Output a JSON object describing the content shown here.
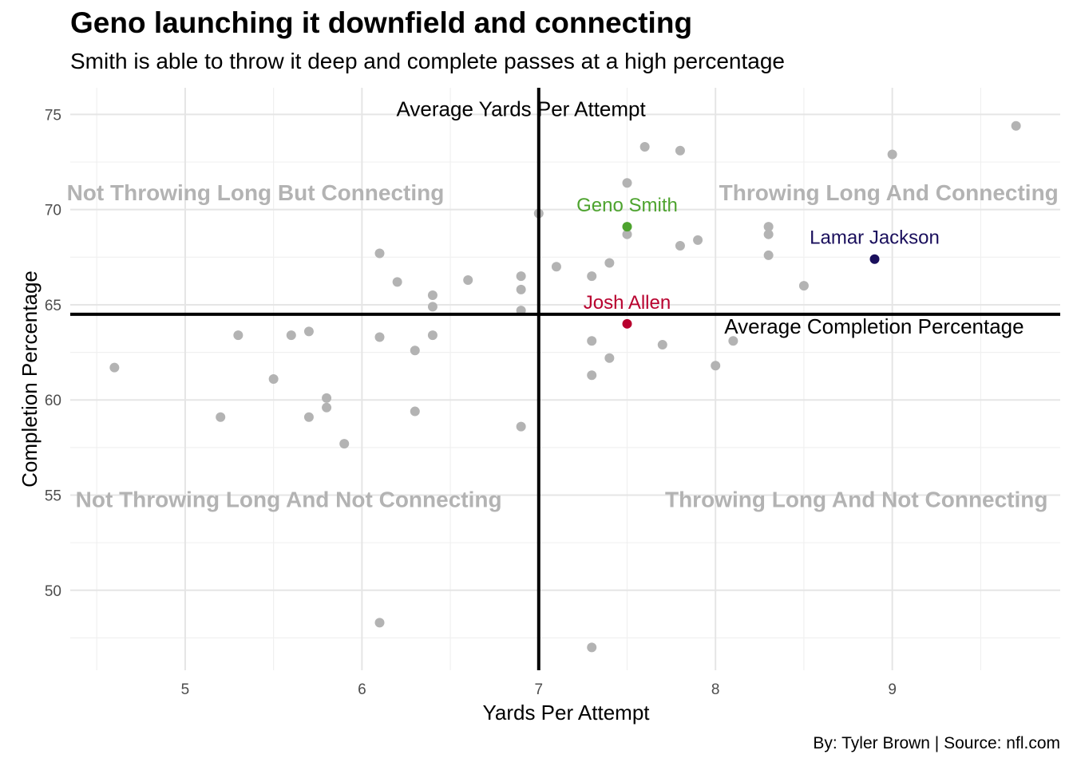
{
  "chart_data": {
    "type": "scatter",
    "title": "Geno launching it downfield and connecting",
    "subtitle": "Smith is able to throw it deep and complete passes at a high percentage",
    "caption": "By: Tyler Brown | Source: nfl.com",
    "xlabel": "Yards Per Attempt",
    "ylabel": "Completion Percentage",
    "xlim": [
      4.35,
      9.95
    ],
    "ylim": [
      45.8,
      76.4
    ],
    "xticks": [
      5,
      6,
      7,
      8,
      9
    ],
    "yticks": [
      50,
      55,
      60,
      65,
      70,
      75
    ],
    "grid": true,
    "reference_lines": {
      "x": 7.0,
      "y": 64.5,
      "x_label": "Average Yards Per Attempt",
      "y_label": "Average Completion Percentage"
    },
    "quadrant_labels": {
      "top_left": "Not Throwing Long But Connecting",
      "top_right": "Throwing Long And Connecting",
      "bottom_left": "Not Throwing Long And Not Connecting",
      "bottom_right": "Throwing Long And Not Connecting"
    },
    "default_color": "#b3b3b3",
    "points": [
      {
        "x": 9.7,
        "y": 74.4
      },
      {
        "x": 7.6,
        "y": 73.3
      },
      {
        "x": 7.8,
        "y": 73.1
      },
      {
        "x": 9.0,
        "y": 72.9
      },
      {
        "x": 7.5,
        "y": 71.4
      },
      {
        "x": 7.0,
        "y": 69.8
      },
      {
        "x": 8.3,
        "y": 69.1
      },
      {
        "x": 7.5,
        "y": 68.7
      },
      {
        "x": 8.3,
        "y": 68.7
      },
      {
        "x": 7.9,
        "y": 68.4
      },
      {
        "x": 7.8,
        "y": 68.1
      },
      {
        "x": 6.1,
        "y": 67.7
      },
      {
        "x": 8.3,
        "y": 67.6
      },
      {
        "x": 7.4,
        "y": 67.2
      },
      {
        "x": 7.1,
        "y": 67.0
      },
      {
        "x": 6.9,
        "y": 66.5
      },
      {
        "x": 7.3,
        "y": 66.5
      },
      {
        "x": 6.6,
        "y": 66.3
      },
      {
        "x": 6.2,
        "y": 66.2
      },
      {
        "x": 8.5,
        "y": 66.0
      },
      {
        "x": 6.9,
        "y": 65.8
      },
      {
        "x": 6.4,
        "y": 65.5
      },
      {
        "x": 6.4,
        "y": 64.9
      },
      {
        "x": 6.9,
        "y": 64.7
      },
      {
        "x": 5.3,
        "y": 63.4
      },
      {
        "x": 5.6,
        "y": 63.4
      },
      {
        "x": 5.7,
        "y": 63.6
      },
      {
        "x": 6.1,
        "y": 63.3
      },
      {
        "x": 6.4,
        "y": 63.4
      },
      {
        "x": 7.3,
        "y": 63.1
      },
      {
        "x": 8.1,
        "y": 63.1
      },
      {
        "x": 7.7,
        "y": 62.9
      },
      {
        "x": 6.3,
        "y": 62.6
      },
      {
        "x": 7.4,
        "y": 62.2
      },
      {
        "x": 8.0,
        "y": 61.8
      },
      {
        "x": 4.6,
        "y": 61.7
      },
      {
        "x": 7.3,
        "y": 61.3
      },
      {
        "x": 5.5,
        "y": 61.1
      },
      {
        "x": 5.8,
        "y": 60.1
      },
      {
        "x": 5.8,
        "y": 59.6
      },
      {
        "x": 6.3,
        "y": 59.4
      },
      {
        "x": 5.2,
        "y": 59.1
      },
      {
        "x": 5.7,
        "y": 59.1
      },
      {
        "x": 6.9,
        "y": 58.6
      },
      {
        "x": 5.9,
        "y": 57.7
      },
      {
        "x": 6.1,
        "y": 48.3
      },
      {
        "x": 7.3,
        "y": 47.0
      }
    ],
    "highlighted": [
      {
        "name": "Geno Smith",
        "x": 7.5,
        "y": 69.1,
        "color": "#4da32e"
      },
      {
        "name": "Lamar Jackson",
        "x": 8.9,
        "y": 67.4,
        "color": "#1a0f5c"
      },
      {
        "name": "Josh Allen",
        "x": 7.5,
        "y": 64.0,
        "color": "#b8002e"
      }
    ]
  }
}
